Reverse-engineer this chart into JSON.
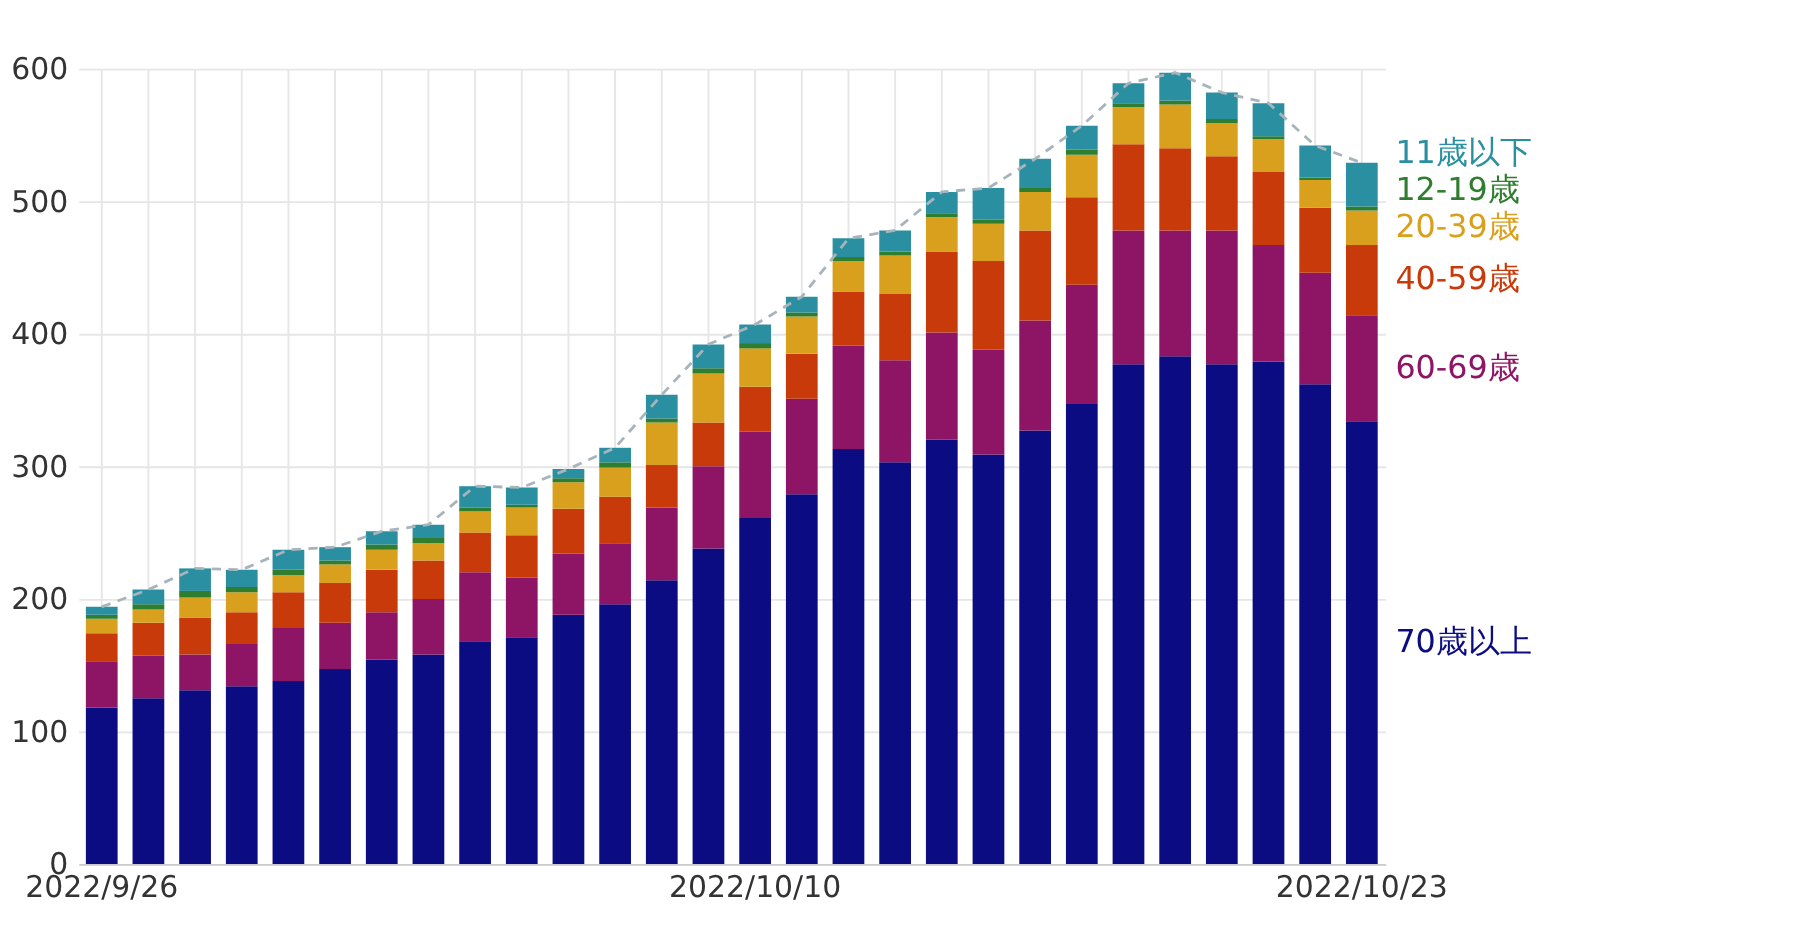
{
  "chart_data": {
    "type": "bar",
    "stacked": true,
    "categories": [
      "2022/9/26",
      null,
      null,
      null,
      null,
      null,
      null,
      null,
      null,
      null,
      null,
      null,
      null,
      null,
      "2022/10/10",
      null,
      null,
      null,
      null,
      null,
      null,
      null,
      null,
      null,
      null,
      null,
      null,
      "2022/10/23"
    ],
    "series": [
      {
        "name": "70歳以上",
        "color": "#0c0c82",
        "values": [
          118,
          125,
          131,
          134,
          138,
          147,
          154,
          158,
          168,
          171,
          188,
          196,
          214,
          238,
          261,
          279,
          313,
          303,
          320,
          309,
          327,
          347,
          377,
          383,
          377,
          379,
          362,
          334
        ]
      },
      {
        "name": "60-69歳",
        "color": "#8e1466",
        "values": [
          35,
          32,
          27,
          32,
          40,
          35,
          36,
          42,
          52,
          45,
          46,
          46,
          55,
          62,
          65,
          72,
          78,
          77,
          81,
          79,
          83,
          90,
          101,
          95,
          101,
          88,
          84,
          80
        ]
      },
      {
        "name": "40-59歳",
        "color": "#c83a0a",
        "values": [
          21,
          25,
          28,
          24,
          27,
          30,
          32,
          29,
          30,
          32,
          34,
          35,
          32,
          33,
          34,
          34,
          41,
          50,
          61,
          67,
          68,
          66,
          65,
          62,
          56,
          55,
          49,
          53
        ]
      },
      {
        "name": "20-39歳",
        "color": "#d9a01e",
        "values": [
          11,
          10,
          15,
          15,
          13,
          14,
          15,
          13,
          16,
          21,
          20,
          22,
          32,
          37,
          29,
          28,
          23,
          29,
          26,
          28,
          29,
          32,
          28,
          33,
          25,
          25,
          21,
          26
        ]
      },
      {
        "name": "12-19歳",
        "color": "#2f7d2f",
        "values": [
          3,
          4,
          5,
          4,
          4,
          3,
          4,
          4,
          3,
          2,
          3,
          4,
          3,
          4,
          4,
          3,
          3,
          3,
          3,
          3,
          3,
          4,
          3,
          3,
          3,
          2,
          2,
          3
        ]
      },
      {
        "name": "11歳以下",
        "color": "#2a8fa0",
        "values": [
          6,
          11,
          17,
          13,
          15,
          10,
          10,
          10,
          16,
          13,
          7,
          11,
          18,
          18,
          14,
          12,
          14,
          16,
          16,
          24,
          22,
          18,
          15,
          21,
          20,
          25,
          24,
          33
        ]
      },
      {
        "type": "line",
        "color": "#a8b4bc",
        "line_style": "dashed",
        "values": [
          194,
          207,
          223,
          222,
          237,
          239,
          251,
          256,
          285,
          284,
          298,
          314,
          354,
          392,
          407,
          428,
          472,
          478,
          507,
          510,
          532,
          557,
          589,
          597,
          582,
          574,
          542,
          529
        ]
      }
    ],
    "ylim": [
      0,
      600
    ],
    "yticks": [
      0,
      100,
      200,
      300,
      400,
      500,
      600
    ],
    "grid": true,
    "legend": "right"
  }
}
